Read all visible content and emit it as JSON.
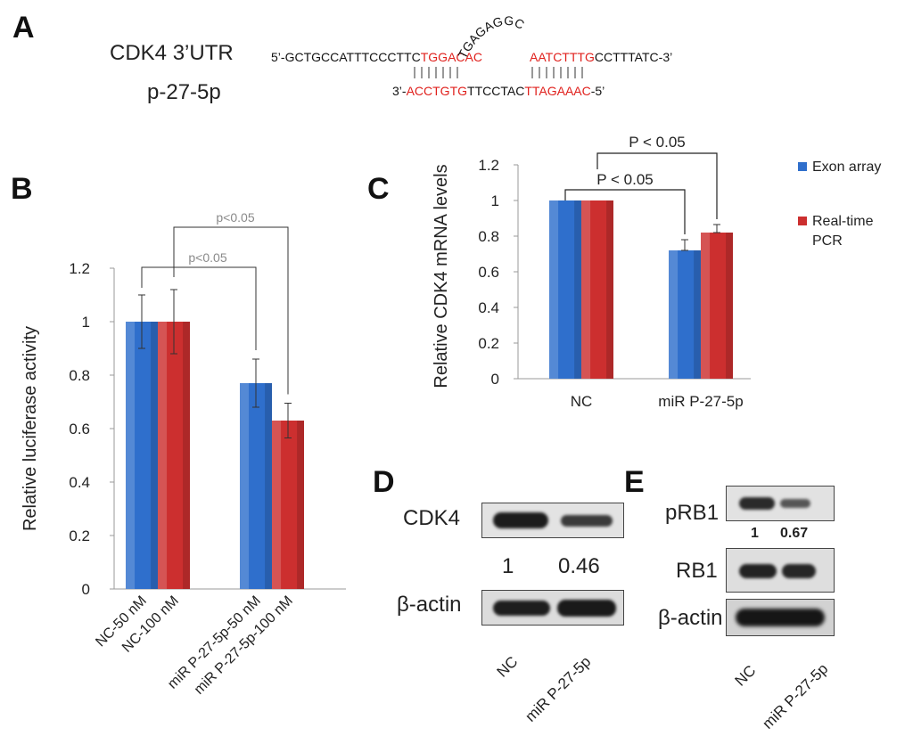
{
  "panels": {
    "a": "A",
    "b": "B",
    "c": "C",
    "d": "D",
    "e": "E"
  },
  "panel_a": {
    "utr_label": "CDK4 3’UTR",
    "mirna_label": "p-27-5p",
    "utr_prefix": "5’-",
    "utr_seq1": "GCTGCCATTTCCCTTC",
    "utr_seed1": "TGGACAC",
    "utr_loop": "TGAGAGGC",
    "utr_seed2": "AATCTTTG",
    "utr_seq2": "CCTTTATC",
    "utr_suffix": "-3’",
    "mir_prefix": "3’-",
    "mir_seed1": "ACCTGTG",
    "mir_mid": "TTCCTAC",
    "mir_seed2": "TTAGAAAC",
    "mir_suffix": "-5’",
    "seed_color": "#e0201c"
  },
  "chart_data": [
    {
      "id": "B",
      "type": "bar",
      "title": "",
      "ylabel": "Relative luciferase activity",
      "xlabel": "",
      "ylim": [
        0,
        1.2
      ],
      "yticks": [
        "0",
        "0.2",
        "0.4",
        "0.6",
        "0.8",
        "1",
        "1.2"
      ],
      "categories": [
        "NC-50 nM",
        "NC-100 nM",
        "miR P-27-5p-50 nM",
        "miR P-27-5p-100 nM"
      ],
      "values": [
        1.0,
        1.0,
        0.77,
        0.63
      ],
      "errors": [
        0.1,
        0.12,
        0.09,
        0.065
      ],
      "colors": [
        "#2f6fcc",
        "#cc2f2f",
        "#2f6fcc",
        "#cc2f2f"
      ],
      "annotations": [
        "p<0.05",
        "p<0.05"
      ],
      "annotation_color": "#8a8a8a"
    },
    {
      "id": "C",
      "type": "bar",
      "title": "",
      "ylabel": "Relative CDK4 mRNA levels",
      "xlabel": "",
      "ylim": [
        0,
        1.2
      ],
      "yticks": [
        "0",
        "0.2",
        "0.4",
        "0.6",
        "0.8",
        "1",
        "1.2"
      ],
      "categories": [
        "NC",
        "miR P-27-5p"
      ],
      "series": [
        {
          "name": "Exon array",
          "values": [
            1.0,
            0.72
          ],
          "errors": [
            0.0,
            0.06
          ],
          "color": "#2f6fcc"
        },
        {
          "name": "Real-time PCR",
          "values": [
            1.0,
            0.82
          ],
          "errors": [
            0.0,
            0.045
          ],
          "color": "#cc2f2f"
        }
      ],
      "annotations": [
        "P < 0.05",
        "P < 0.05"
      ],
      "legend": [
        "Exon array",
        "Real-time PCR"
      ],
      "legend_position": "right"
    }
  ],
  "panel_d": {
    "cdk4": "CDK4",
    "actin": "β-actin",
    "value_nc": "1",
    "value_mir": "0.46",
    "lane_nc": "NC",
    "lane_mir": "miR P-27-5p"
  },
  "panel_e": {
    "prb1": "pRB1",
    "rb1": "RB1",
    "actin": "β-actin",
    "value_nc": "1",
    "value_mir": "0.67",
    "lane_nc": "NC",
    "lane_mir": "miR P-27-5p"
  }
}
